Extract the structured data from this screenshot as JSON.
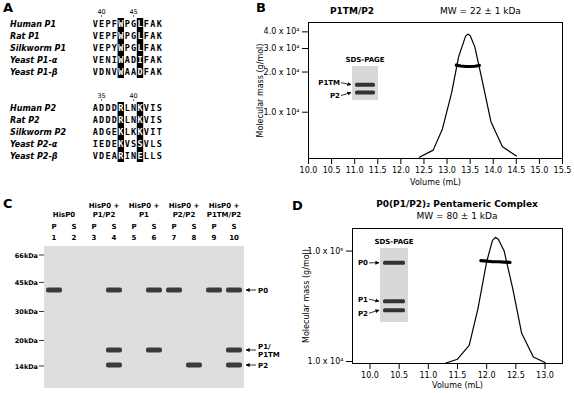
{
  "panel_a": {
    "label": "A",
    "blocks": [
      {
        "numbers": [
          40,
          45
        ],
        "highlight": [
          4,
          7
        ],
        "rows": [
          {
            "name": "Human P1",
            "sequence": "VEPFWPGLFAK"
          },
          {
            "name": "Rat P1",
            "sequence": "VEPFWPGLFAK"
          },
          {
            "name": "Silkworm P1",
            "sequence": "VEPYWPGLFAK"
          },
          {
            "name": "Yeast P1-α",
            "sequence": "VENIWADIFAK"
          },
          {
            "name": "Yeast P1-β",
            "sequence": "VDNVWAADFAK"
          }
        ]
      },
      {
        "numbers": [
          35,
          40
        ],
        "highlight": [
          4,
          7
        ],
        "rows": [
          {
            "name": "Human P2",
            "sequence": "ADDDRLNKVIS"
          },
          {
            "name": "Rat P2",
            "sequence": "ADDDRLNKVIS"
          },
          {
            "name": "Silkworm P2",
            "sequence": "ADGEKLKKVIT"
          },
          {
            "name": "Yeast P2-α",
            "sequence": "IEDEKVSSVLS"
          },
          {
            "name": "Yeast P2-β",
            "sequence": "VDEARINELLS"
          }
        ]
      }
    ]
  },
  "chart_data": [
    {
      "label": "B",
      "type": "line",
      "title": "P1TM/P2",
      "subtitle": "MW = 22 ± 1 kDa",
      "x_label": "Volume (mL)",
      "y_label": "Molecular mass (g/mol)",
      "log": "y",
      "xlim": [
        10,
        15.5
      ],
      "xticks": [
        {
          "value": 10,
          "label": "10.0"
        },
        10.5,
        {
          "value": 11,
          "label": "11.0"
        },
        11.5,
        {
          "value": 12,
          "label": "12.0"
        },
        12.5,
        {
          "value": 13,
          "label": "13.0"
        },
        13.5,
        {
          "value": 14,
          "label": "14.0"
        },
        14.5,
        {
          "value": 15,
          "label": "15.0"
        },
        15.5
      ],
      "ylim": [
        4500,
        47000
      ],
      "yticks": [
        {
          "value": 10000,
          "label": "1.0 x 10⁴"
        },
        {
          "value": 20000,
          "label": "2.0 x 10⁴"
        },
        {
          "value": 30000,
          "label": "3.0 x 10⁴"
        },
        {
          "value": 40000,
          "label": "4.0 x 10⁴"
        }
      ],
      "series": [
        {
          "color": "#000000",
          "line_style": "solid",
          "x": [
            12.4,
            12.7,
            12.9,
            13.1,
            13.25,
            13.4,
            13.45,
            13.5,
            13.6,
            13.75,
            13.95,
            14.2,
            14.5
          ],
          "values": [
            4600,
            5200,
            7500,
            14000,
            26000,
            37000,
            38500,
            37500,
            31000,
            18000,
            8500,
            5500,
            4700
          ]
        },
        {
          "color": "#000000",
          "line_style": "bold",
          "x": [
            13.2,
            13.3,
            13.4,
            13.5,
            13.6,
            13.7
          ],
          "values": [
            22500,
            22200,
            22000,
            22000,
            22100,
            22400
          ]
        }
      ],
      "inset": {
        "title": "SDS-PAGE",
        "bands": [
          "P1TM",
          "P2"
        ]
      }
    },
    {
      "label": "D",
      "type": "line",
      "title": "P0(P1/P2)₂ Pentameric Complex",
      "subtitle": "MW = 80 ± 1 kDa",
      "x_label": "Volume (mL)",
      "y_label": "Molecular mass (g/mol)",
      "log": "y",
      "xlim": [
        9.7,
        13.3
      ],
      "xticks": [
        {
          "value": 10,
          "label": "10.0"
        },
        10.5,
        {
          "value": 11,
          "label": "11.0"
        },
        11.5,
        {
          "value": 12,
          "label": "12.0"
        },
        12.5,
        {
          "value": 13,
          "label": "13.0"
        }
      ],
      "ylim": [
        9600,
        160000
      ],
      "yticks": [
        {
          "value": 10000,
          "label": "1.0 x 10⁴"
        },
        {
          "value": 100000,
          "label": "1.0 x 10⁵"
        }
      ],
      "series": [
        {
          "color": "#000000",
          "line_style": "solid",
          "x": [
            11.3,
            11.5,
            11.7,
            11.85,
            12.0,
            12.1,
            12.15,
            12.2,
            12.3,
            12.45,
            12.6,
            12.8,
            13.0
          ],
          "values": [
            9700,
            10500,
            14000,
            30000,
            80000,
            125000,
            133000,
            128000,
            100000,
            45000,
            18000,
            11000,
            9800
          ]
        },
        {
          "color": "#000000",
          "line_style": "bold",
          "x": [
            11.9,
            12.0,
            12.1,
            12.2,
            12.3,
            12.4
          ],
          "values": [
            82000,
            81000,
            80000,
            80000,
            79500,
            79000
          ]
        }
      ],
      "inset": {
        "title": "SDS-PAGE",
        "bands": [
          "P0",
          "P1",
          "P2"
        ]
      }
    }
  ],
  "panel_c": {
    "label": "C",
    "headings": [
      [
        "HisP0"
      ],
      [
        "HisP0 +",
        "P1/P2"
      ],
      [
        "HisP0 +",
        "P1"
      ],
      [
        "HisP0 +",
        "P2/P2"
      ],
      [
        "HisP0 +",
        "P1TM/P2"
      ]
    ],
    "lanes": [
      {
        "number": 1,
        "fraction": "P",
        "bands": [
          0
        ]
      },
      {
        "number": 2,
        "fraction": "S",
        "bands": []
      },
      {
        "number": 3,
        "fraction": "P",
        "bands": []
      },
      {
        "number": 4,
        "fraction": "S",
        "bands": [
          0,
          1,
          2
        ]
      },
      {
        "number": 5,
        "fraction": "P",
        "bands": []
      },
      {
        "number": 6,
        "fraction": "S",
        "bands": [
          0,
          1
        ]
      },
      {
        "number": 7,
        "fraction": "P",
        "bands": [
          0
        ]
      },
      {
        "number": 8,
        "fraction": "S",
        "bands": [
          2
        ]
      },
      {
        "number": 9,
        "fraction": "P",
        "bands": [
          0
        ]
      },
      {
        "number": 10,
        "fraction": "S",
        "bands": [
          0,
          1,
          2
        ]
      }
    ],
    "markers": [
      {
        "value": 66,
        "label": "66kDa"
      },
      {
        "value": 45,
        "label": "45kDa"
      },
      {
        "value": 30,
        "label": "30kDa"
      },
      {
        "value": 20,
        "label": "20kDa"
      },
      {
        "value": 14,
        "label": "14kDa"
      }
    ],
    "band_labels": [
      [
        "P0"
      ],
      [
        "P1/",
        "P1TM"
      ],
      [
        "P2"
      ]
    ]
  }
}
